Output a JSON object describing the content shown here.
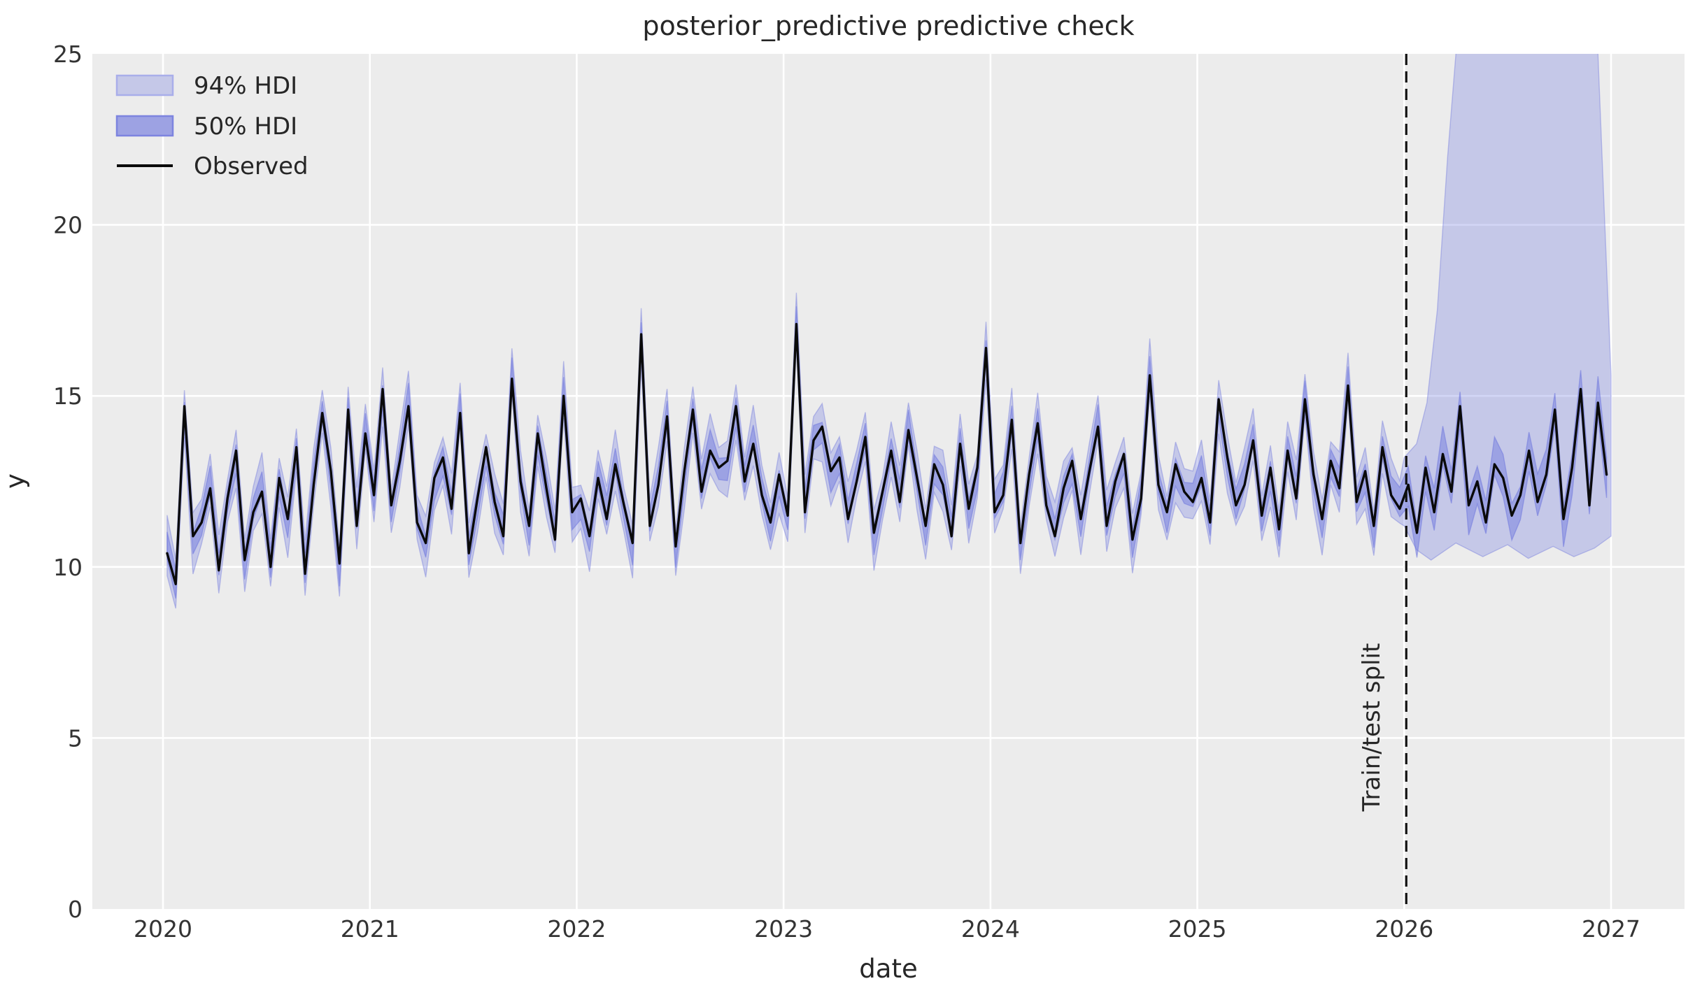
{
  "figure": {
    "title": "posterior_predictive predictive check"
  },
  "axes": {
    "xlabel": "date",
    "ylabel": "y",
    "x_ticks": [
      2020,
      2021,
      2022,
      2023,
      2024,
      2025,
      2026,
      2027
    ],
    "y_ticks": [
      0,
      5,
      10,
      15,
      20,
      25
    ],
    "xlim": [
      2019.66,
      2027.36
    ],
    "ylim": [
      0,
      25
    ]
  },
  "annotation": {
    "label": "Train/test split",
    "x": 2026.01
  },
  "colors": {
    "plot_bg": "#ececec",
    "grid": "#ffffff",
    "band_base": "#6b74dd",
    "hdi94_fill_opacity": 0.3,
    "hdi50_fill_opacity": 0.45,
    "observed": "#0a0a0a",
    "split_line": "#111111",
    "text": "#333333",
    "swatch94_fill": "#c5c8e8",
    "swatch94_edge": "#a9aeea",
    "swatch50_fill": "#9da2e3",
    "swatch50_edge": "#7d84df"
  },
  "chart_data": {
    "type": "line",
    "title": "posterior_predictive predictive check",
    "xlabel": "date",
    "ylabel": "y",
    "xlim": [
      2019.66,
      2027.36
    ],
    "ylim": [
      0,
      25
    ],
    "x_ticks": [
      2020,
      2021,
      2022,
      2023,
      2024,
      2025,
      2026,
      2027
    ],
    "y_ticks": [
      0,
      5,
      10,
      15,
      20,
      25
    ],
    "grid": true,
    "legend_position": "upper left",
    "legend": [
      "94% HDI",
      "50% HDI",
      "Observed"
    ],
    "split_x": 2026.01,
    "split_label": "Train/test split",
    "observed": {
      "x_start": 2020.02,
      "x_step": 0.041667,
      "y": [
        10.4,
        9.5,
        14.7,
        10.9,
        11.3,
        12.3,
        9.9,
        12.0,
        13.4,
        10.2,
        11.6,
        12.2,
        10.0,
        12.6,
        11.4,
        13.5,
        9.8,
        12.4,
        14.5,
        12.8,
        10.1,
        14.6,
        11.2,
        13.9,
        12.1,
        15.2,
        11.8,
        13.1,
        14.7,
        11.3,
        10.7,
        12.6,
        13.2,
        11.7,
        14.5,
        10.4,
        12.0,
        13.5,
        11.9,
        10.9,
        15.5,
        12.5,
        11.2,
        13.9,
        12.3,
        10.8,
        15.0,
        11.6,
        12.0,
        10.9,
        12.6,
        11.4,
        13.0,
        11.8,
        10.7,
        16.8,
        11.2,
        12.4,
        14.4,
        10.6,
        12.8,
        14.6,
        12.2,
        13.4,
        12.9,
        13.1,
        14.7,
        12.5,
        13.6,
        12.1,
        11.3,
        12.7,
        11.5,
        17.1,
        11.6,
        13.7,
        14.1,
        12.8,
        13.2,
        11.4,
        12.5,
        13.8,
        11.0,
        12.2,
        13.4,
        11.9,
        14.0,
        12.6,
        11.2,
        13.0,
        12.4,
        10.9,
        13.6,
        11.7,
        12.9,
        16.4,
        11.6,
        12.1,
        14.3,
        10.7,
        12.7,
        14.2,
        11.8,
        10.9,
        12.3,
        13.1,
        11.4,
        12.8,
        14.1,
        11.2,
        12.5,
        13.3,
        10.8,
        12.0,
        15.6,
        12.4,
        11.6,
        13.0,
        12.2,
        11.9,
        12.6,
        11.3,
        14.9,
        13.2,
        11.8,
        12.4,
        13.7,
        11.5,
        12.9,
        11.1,
        13.4,
        12.0,
        14.9,
        12.7,
        11.4,
        13.1,
        12.3,
        15.3,
        11.9,
        12.8,
        11.2,
        13.5,
        12.1,
        11.7,
        12.4,
        11.0,
        12.9,
        11.6,
        13.3,
        12.2,
        14.7,
        11.8,
        12.5,
        11.3,
        13.0,
        12.6,
        11.5,
        12.1,
        13.4,
        11.9,
        12.7,
        14.6,
        11.4,
        12.9,
        15.2,
        11.8,
        14.8,
        12.7
      ]
    },
    "hdi_50": {
      "kind": "band-around-observed",
      "halfwidth_min": 0.3,
      "halfwidth_max": 0.44,
      "forecast_extra_halfwidth": 0.18,
      "center_jitter": 0.25
    },
    "hdi_94": {
      "kind": "band-around-observed-train-anchors-forecast",
      "halfwidth_min": 0.62,
      "halfwidth_max": 0.9,
      "forecast_hi": [
        [
          2026.0,
          13.2
        ],
        [
          2026.06,
          13.6
        ],
        [
          2026.11,
          14.8
        ],
        [
          2026.16,
          17.5
        ],
        [
          2026.21,
          22.0
        ],
        [
          2026.27,
          26.5
        ],
        [
          2026.4,
          28.0
        ],
        [
          2026.88,
          28.0
        ],
        [
          2026.93,
          26.0
        ],
        [
          2026.97,
          20.0
        ],
        [
          2027.0,
          15.6
        ]
      ],
      "forecast_lo": [
        [
          2026.0,
          11.2
        ],
        [
          2026.06,
          10.5
        ],
        [
          2026.13,
          10.2
        ],
        [
          2026.25,
          10.7
        ],
        [
          2026.38,
          10.3
        ],
        [
          2026.5,
          10.65
        ],
        [
          2026.6,
          10.25
        ],
        [
          2026.72,
          10.6
        ],
        [
          2026.82,
          10.3
        ],
        [
          2026.92,
          10.55
        ],
        [
          2027.0,
          10.9
        ]
      ]
    }
  }
}
